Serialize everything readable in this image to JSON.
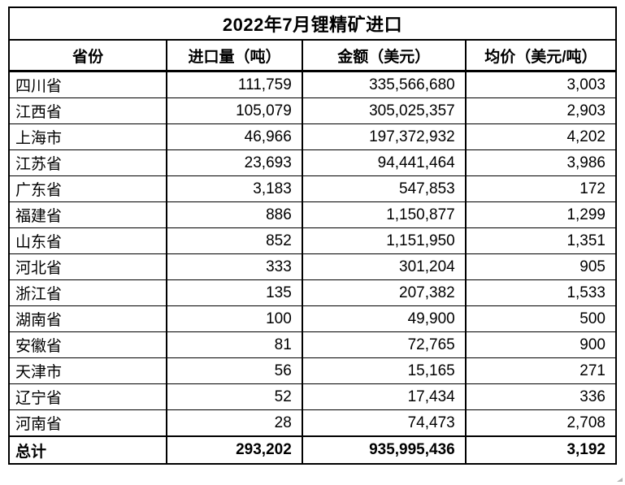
{
  "table": {
    "title": "2022年7月锂精矿进口",
    "headers": [
      "省份",
      "进口量（吨）",
      "金额（美元）",
      "均价（美元/吨）"
    ],
    "rows": [
      [
        "四川省",
        "111,759",
        "335,566,680",
        "3,003"
      ],
      [
        "江西省",
        "105,079",
        "305,025,357",
        "2,903"
      ],
      [
        "上海市",
        "46,966",
        "197,372,932",
        "4,202"
      ],
      [
        "江苏省",
        "23,693",
        "94,441,464",
        "3,986"
      ],
      [
        "广东省",
        "3,183",
        "547,853",
        "172"
      ],
      [
        "福建省",
        "886",
        "1,150,877",
        "1,299"
      ],
      [
        "山东省",
        "852",
        "1,151,950",
        "1,351"
      ],
      [
        "河北省",
        "333",
        "301,204",
        "905"
      ],
      [
        "浙江省",
        "135",
        "207,382",
        "1,533"
      ],
      [
        "湖南省",
        "100",
        "49,900",
        "500"
      ],
      [
        "安徽省",
        "81",
        "72,765",
        "900"
      ],
      [
        "天津市",
        "56",
        "15,165",
        "271"
      ],
      [
        "辽宁省",
        "52",
        "17,434",
        "336"
      ],
      [
        "河南省",
        "28",
        "74,473",
        "2,708"
      ]
    ],
    "total": [
      "总计",
      "293,202",
      "935,995,436",
      "3,192"
    ]
  },
  "colors": {
    "text": "#000000",
    "border": "#000000",
    "background": "#ffffff"
  },
  "chart_data": {
    "type": "table",
    "title": "2022年7月锂精矿进口",
    "columns": [
      "省份",
      "进口量（吨）",
      "金额（美元）",
      "均价（美元/吨）"
    ],
    "rows": [
      {
        "province": "四川省",
        "import_volume_tons": 111759,
        "amount_usd": 335566680,
        "avg_price_usd_per_ton": 3003
      },
      {
        "province": "江西省",
        "import_volume_tons": 105079,
        "amount_usd": 305025357,
        "avg_price_usd_per_ton": 2903
      },
      {
        "province": "上海市",
        "import_volume_tons": 46966,
        "amount_usd": 197372932,
        "avg_price_usd_per_ton": 4202
      },
      {
        "province": "江苏省",
        "import_volume_tons": 23693,
        "amount_usd": 94441464,
        "avg_price_usd_per_ton": 3986
      },
      {
        "province": "广东省",
        "import_volume_tons": 3183,
        "amount_usd": 547853,
        "avg_price_usd_per_ton": 172
      },
      {
        "province": "福建省",
        "import_volume_tons": 886,
        "amount_usd": 1150877,
        "avg_price_usd_per_ton": 1299
      },
      {
        "province": "山东省",
        "import_volume_tons": 852,
        "amount_usd": 1151950,
        "avg_price_usd_per_ton": 1351
      },
      {
        "province": "河北省",
        "import_volume_tons": 333,
        "amount_usd": 301204,
        "avg_price_usd_per_ton": 905
      },
      {
        "province": "浙江省",
        "import_volume_tons": 135,
        "amount_usd": 207382,
        "avg_price_usd_per_ton": 1533
      },
      {
        "province": "湖南省",
        "import_volume_tons": 100,
        "amount_usd": 49900,
        "avg_price_usd_per_ton": 500
      },
      {
        "province": "安徽省",
        "import_volume_tons": 81,
        "amount_usd": 72765,
        "avg_price_usd_per_ton": 900
      },
      {
        "province": "天津市",
        "import_volume_tons": 56,
        "amount_usd": 15165,
        "avg_price_usd_per_ton": 271
      },
      {
        "province": "辽宁省",
        "import_volume_tons": 52,
        "amount_usd": 17434,
        "avg_price_usd_per_ton": 336
      },
      {
        "province": "河南省",
        "import_volume_tons": 28,
        "amount_usd": 74473,
        "avg_price_usd_per_ton": 2708
      }
    ],
    "total": {
      "province": "总计",
      "import_volume_tons": 293202,
      "amount_usd": 935995436,
      "avg_price_usd_per_ton": 3192
    }
  }
}
